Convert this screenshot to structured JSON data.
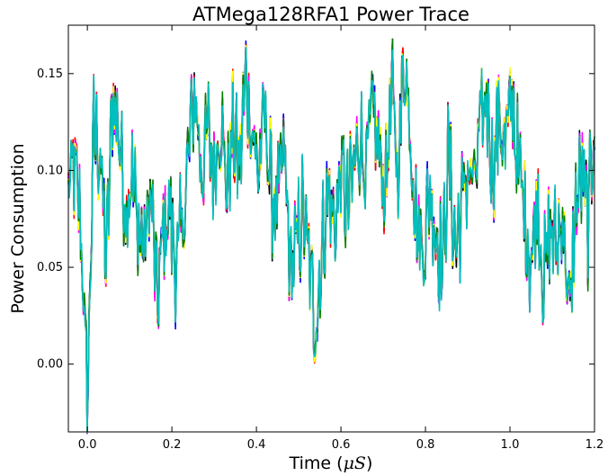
{
  "chart_data": {
    "type": "line",
    "title": "ATMega128RFA1 Power Trace",
    "xlabel_text": "Time (",
    "xlabel_math": "μS",
    "xlabel_close": ")",
    "ylabel": "Power Consumption",
    "xlim": [
      -0.045,
      1.2
    ],
    "ylim": [
      -0.035,
      0.175
    ],
    "x_ticks": [
      0.0,
      0.2,
      0.4,
      0.6,
      0.8,
      1.0,
      1.2
    ],
    "x_tick_labels": [
      "0.0",
      "0.2",
      "0.4",
      "0.6",
      "0.8",
      "1.0",
      "1.2"
    ],
    "y_ticks": [
      0.0,
      0.05,
      0.1,
      0.15
    ],
    "y_tick_labels": [
      "0.00",
      "0.05",
      "0.10",
      "0.15"
    ],
    "grid": false,
    "legend": "none",
    "x": [
      -0.045,
      -0.03,
      -0.015,
      0.0,
      0.015,
      0.03,
      0.045,
      0.06,
      0.075,
      0.09,
      0.105,
      0.12,
      0.135,
      0.15,
      0.165,
      0.18,
      0.195,
      0.21,
      0.225,
      0.24,
      0.255,
      0.27,
      0.285,
      0.3,
      0.315,
      0.33,
      0.345,
      0.36,
      0.375,
      0.39,
      0.405,
      0.42,
      0.435,
      0.45,
      0.465,
      0.48,
      0.495,
      0.51,
      0.525,
      0.54,
      0.555,
      0.57,
      0.585,
      0.6,
      0.615,
      0.63,
      0.645,
      0.66,
      0.675,
      0.69,
      0.705,
      0.72,
      0.735,
      0.75,
      0.765,
      0.78,
      0.795,
      0.81,
      0.825,
      0.84,
      0.855,
      0.87,
      0.885,
      0.9,
      0.915,
      0.93,
      0.945,
      0.96,
      0.975,
      0.99,
      1.005,
      1.02,
      1.035,
      1.05,
      1.065,
      1.08,
      1.095,
      1.11,
      1.125,
      1.14,
      1.155,
      1.17,
      1.185,
      1.2
    ],
    "base_y": [
      0.09,
      0.1,
      0.07,
      -0.02,
      0.12,
      0.11,
      0.05,
      0.14,
      0.12,
      0.08,
      0.1,
      0.07,
      0.06,
      0.09,
      0.03,
      0.07,
      0.08,
      0.05,
      0.07,
      0.11,
      0.14,
      0.1,
      0.12,
      0.1,
      0.13,
      0.09,
      0.12,
      0.1,
      0.15,
      0.12,
      0.1,
      0.13,
      0.09,
      0.08,
      0.11,
      0.05,
      0.06,
      0.08,
      0.05,
      0.02,
      0.06,
      0.09,
      0.07,
      0.1,
      0.08,
      0.1,
      0.12,
      0.1,
      0.13,
      0.11,
      0.09,
      0.14,
      0.1,
      0.16,
      0.12,
      0.07,
      0.06,
      0.09,
      0.07,
      0.05,
      0.11,
      0.06,
      0.08,
      0.1,
      0.09,
      0.12,
      0.14,
      0.1,
      0.13,
      0.11,
      0.14,
      0.1,
      0.08,
      0.05,
      0.09,
      0.04,
      0.07,
      0.06,
      0.08,
      0.02,
      0.08,
      0.1,
      0.07,
      0.13
    ],
    "series_colors": [
      "#000000",
      "#0000ff",
      "#ff0000",
      "#ff00ff",
      "#ffff00",
      "#008000",
      "#00bfbf"
    ]
  }
}
